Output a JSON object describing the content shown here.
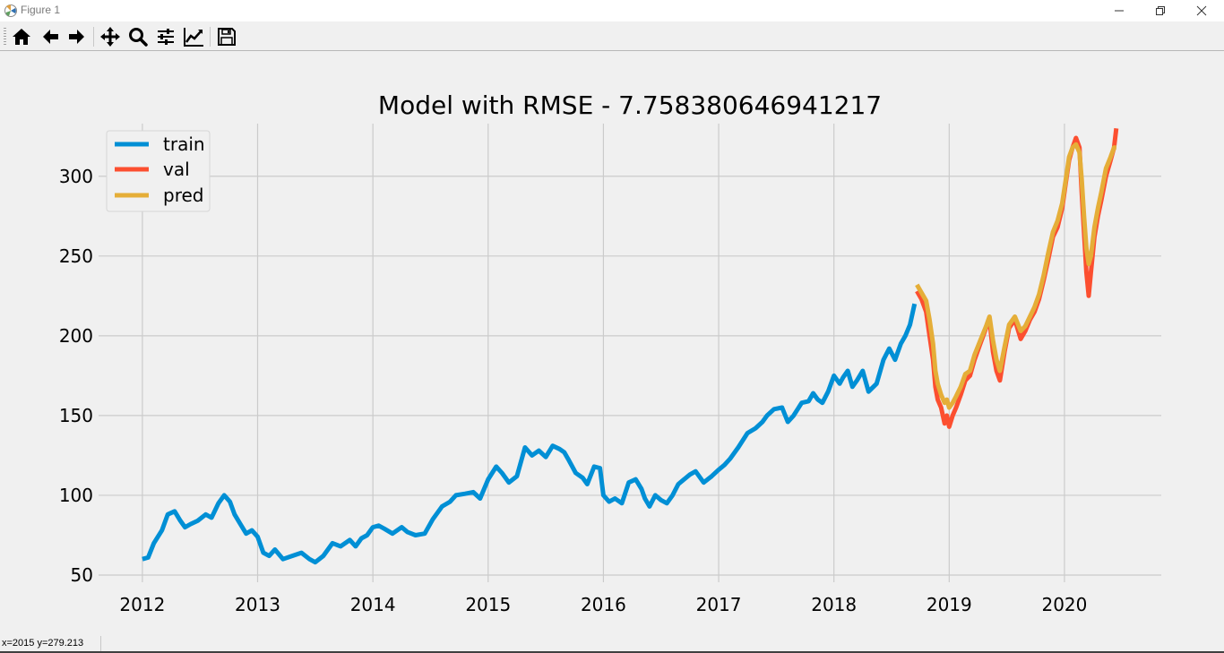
{
  "window": {
    "title": "Figure 1",
    "controls": [
      "minimize-icon",
      "maximize-icon",
      "close-icon"
    ]
  },
  "toolbar": {
    "buttons": [
      {
        "icon": "home-icon",
        "tooltip": "Reset original view"
      },
      {
        "icon": "back-arrow-icon",
        "tooltip": "Back to previous view"
      },
      {
        "icon": "forward-arrow-icon",
        "tooltip": "Forward to next view"
      },
      {
        "icon": "pan-move-icon",
        "tooltip": "Pan axes"
      },
      {
        "icon": "zoom-magnifier-icon",
        "tooltip": "Zoom to rectangle"
      },
      {
        "icon": "subplots-sliders-icon",
        "tooltip": "Configure subplots"
      },
      {
        "icon": "edit-axis-line-icon",
        "tooltip": "Edit axis, curve and image parameters"
      },
      {
        "icon": "save-floppy-icon",
        "tooltip": "Save the figure"
      }
    ]
  },
  "status": {
    "text": "x=2015 y=279.213"
  },
  "colors": {
    "train": "#008fd5",
    "val": "#fc4f30",
    "pred": "#e5ae38",
    "grid": "#cbcbcb",
    "background": "#f0f0f0"
  },
  "chart_data": {
    "type": "line",
    "title": "Model with RMSE - 7.758380646941217",
    "xlabel": "",
    "ylabel": "",
    "xlim": [
      2011.62,
      2020.84
    ],
    "ylim": [
      45.5,
      333
    ],
    "xticks": [
      2012,
      2013,
      2014,
      2015,
      2016,
      2017,
      2018,
      2019,
      2020
    ],
    "xtick_labels": [
      "2012",
      "2013",
      "2014",
      "2015",
      "2016",
      "2017",
      "2018",
      "2019",
      "2020"
    ],
    "yticks": [
      50,
      100,
      150,
      200,
      250,
      300
    ],
    "ytick_labels": [
      "50",
      "100",
      "150",
      "200",
      "250",
      "300"
    ],
    "grid": true,
    "legend": {
      "position": "upper-left",
      "entries": [
        "train",
        "val",
        "pred"
      ]
    },
    "series": [
      {
        "name": "train",
        "x": [
          2012.0,
          2012.05,
          2012.1,
          2012.17,
          2012.22,
          2012.28,
          2012.33,
          2012.37,
          2012.42,
          2012.48,
          2012.55,
          2012.6,
          2012.66,
          2012.71,
          2012.76,
          2012.8,
          2012.85,
          2012.9,
          2012.95,
          2013.0,
          2013.05,
          2013.1,
          2013.15,
          2013.22,
          2013.3,
          2013.38,
          2013.45,
          2013.5,
          2013.57,
          2013.65,
          2013.72,
          2013.8,
          2013.85,
          2013.9,
          2013.95,
          2014.0,
          2014.05,
          2014.1,
          2014.17,
          2014.25,
          2014.3,
          2014.37,
          2014.45,
          2014.52,
          2014.6,
          2014.67,
          2014.72,
          2014.8,
          2014.87,
          2014.93,
          2015.0,
          2015.07,
          2015.12,
          2015.18,
          2015.25,
          2015.32,
          2015.38,
          2015.44,
          2015.5,
          2015.56,
          2015.62,
          2015.66,
          2015.7,
          2015.76,
          2015.82,
          2015.86,
          2015.92,
          2015.97,
          2016.0,
          2016.05,
          2016.1,
          2016.16,
          2016.22,
          2016.28,
          2016.33,
          2016.36,
          2016.4,
          2016.45,
          2016.5,
          2016.55,
          2016.6,
          2016.65,
          2016.7,
          2016.75,
          2016.8,
          2016.87,
          2016.94,
          2017.0,
          2017.05,
          2017.1,
          2017.17,
          2017.25,
          2017.32,
          2017.38,
          2017.42,
          2017.48,
          2017.55,
          2017.6,
          2017.65,
          2017.72,
          2017.78,
          2017.82,
          2017.86,
          2017.9,
          2017.95,
          2018.0,
          2018.05,
          2018.08,
          2018.12,
          2018.16,
          2018.2,
          2018.25,
          2018.3,
          2018.37,
          2018.43,
          2018.48,
          2018.53,
          2018.58,
          2018.62,
          2018.66,
          2018.7
        ],
        "y": [
          60,
          61,
          70,
          78,
          88,
          90,
          84,
          80,
          82,
          84,
          88,
          86,
          95,
          100,
          96,
          88,
          82,
          76,
          78,
          74,
          64,
          62,
          66,
          60,
          62,
          64,
          60,
          58,
          62,
          70,
          68,
          72,
          68,
          73,
          75,
          80,
          81,
          79,
          76,
          80,
          77,
          75,
          76,
          85,
          93,
          96,
          100,
          101,
          102,
          98,
          110,
          118,
          114,
          108,
          112,
          130,
          125,
          128,
          124,
          131,
          129,
          127,
          122,
          114,
          111,
          107,
          118,
          117,
          100,
          96,
          98,
          95,
          108,
          110,
          104,
          98,
          93,
          100,
          97,
          95,
          100,
          107,
          110,
          113,
          115,
          108,
          112,
          116,
          119,
          123,
          130,
          139,
          142,
          146,
          150,
          154,
          155,
          146,
          150,
          158,
          159,
          164,
          160,
          158,
          165,
          175,
          170,
          174,
          178,
          168,
          172,
          178,
          165,
          170,
          185,
          192,
          185,
          195,
          200,
          207,
          220
        ]
      },
      {
        "name": "val",
        "x": [
          2018.72,
          2018.76,
          2018.8,
          2018.83,
          2018.86,
          2018.88,
          2018.9,
          2018.93,
          2018.96,
          2018.98,
          2019.0,
          2019.03,
          2019.06,
          2019.1,
          2019.14,
          2019.18,
          2019.22,
          2019.27,
          2019.32,
          2019.35,
          2019.38,
          2019.41,
          2019.44,
          2019.48,
          2019.52,
          2019.57,
          2019.62,
          2019.66,
          2019.7,
          2019.74,
          2019.78,
          2019.82,
          2019.86,
          2019.9,
          2019.94,
          2019.98,
          2020.01,
          2020.04,
          2020.07,
          2020.1,
          2020.13,
          2020.15,
          2020.17,
          2020.19,
          2020.21,
          2020.23,
          2020.26,
          2020.29,
          2020.32,
          2020.36,
          2020.4,
          2020.43,
          2020.45
        ],
        "y": [
          228,
          223,
          215,
          200,
          185,
          168,
          160,
          155,
          145,
          150,
          143,
          150,
          155,
          163,
          172,
          175,
          185,
          195,
          205,
          210,
          190,
          178,
          172,
          190,
          205,
          210,
          198,
          203,
          210,
          215,
          223,
          235,
          248,
          262,
          268,
          280,
          295,
          310,
          318,
          324,
          318,
          290,
          265,
          240,
          225,
          240,
          262,
          275,
          285,
          300,
          310,
          318,
          330
        ]
      },
      {
        "name": "pred",
        "x": [
          2018.72,
          2018.76,
          2018.8,
          2018.83,
          2018.86,
          2018.88,
          2018.9,
          2018.93,
          2018.96,
          2018.98,
          2019.0,
          2019.03,
          2019.06,
          2019.1,
          2019.14,
          2019.18,
          2019.22,
          2019.27,
          2019.32,
          2019.35,
          2019.38,
          2019.41,
          2019.44,
          2019.48,
          2019.52,
          2019.57,
          2019.62,
          2019.66,
          2019.7,
          2019.74,
          2019.78,
          2019.82,
          2019.86,
          2019.9,
          2019.94,
          2019.98,
          2020.01,
          2020.04,
          2020.07,
          2020.1,
          2020.13,
          2020.15,
          2020.17,
          2020.19,
          2020.21,
          2020.23,
          2020.26,
          2020.29,
          2020.32,
          2020.36,
          2020.4,
          2020.43,
          2020.45
        ],
        "y": [
          232,
          227,
          222,
          210,
          195,
          178,
          170,
          163,
          158,
          160,
          155,
          158,
          162,
          168,
          176,
          178,
          188,
          197,
          206,
          212,
          197,
          185,
          178,
          193,
          207,
          212,
          203,
          206,
          212,
          218,
          226,
          238,
          252,
          265,
          272,
          283,
          297,
          312,
          318,
          320,
          315,
          298,
          275,
          255,
          245,
          250,
          268,
          280,
          290,
          305,
          312,
          318,
          318
        ]
      }
    ]
  }
}
